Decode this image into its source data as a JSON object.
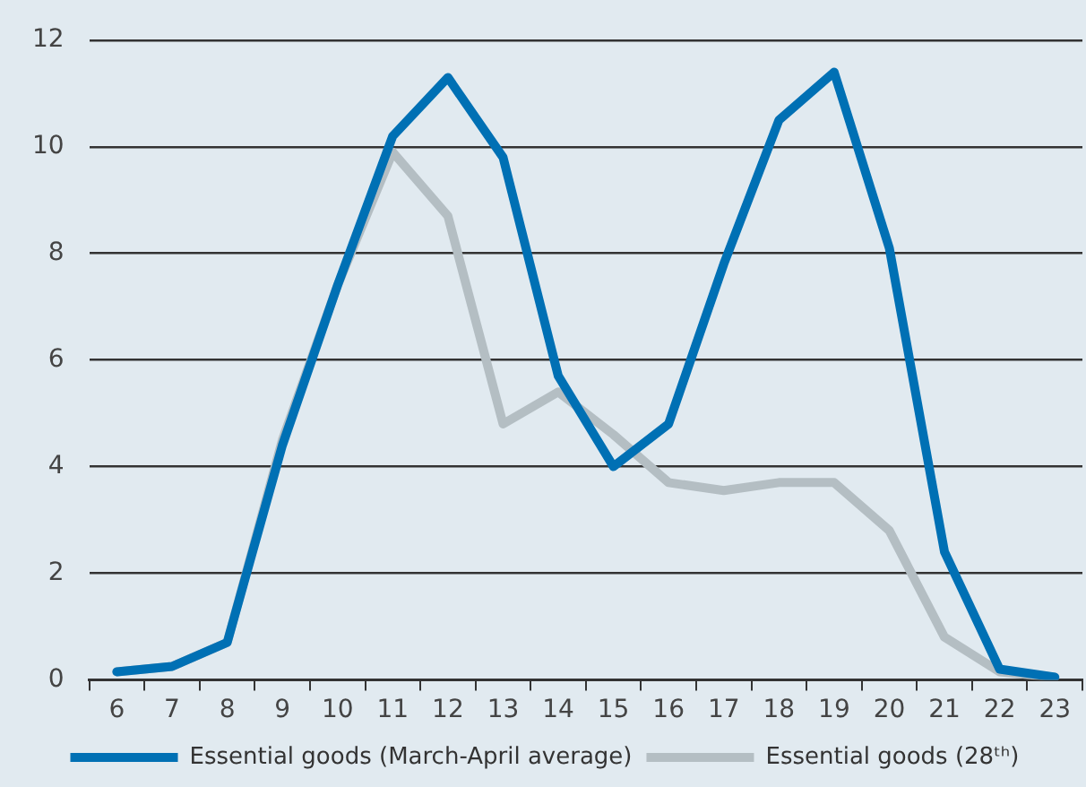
{
  "chart_data": {
    "type": "line",
    "categories": [
      "6",
      "7",
      "8",
      "9",
      "10",
      "11",
      "12",
      "13",
      "14",
      "15",
      "16",
      "17",
      "18",
      "19",
      "20",
      "21",
      "22",
      "23"
    ],
    "series": [
      {
        "name": "Essential goods (28ᵗʰ)",
        "color": "#b4bec3",
        "values": [
          0.15,
          0.25,
          0.7,
          4.5,
          7.4,
          9.9,
          8.7,
          4.8,
          5.4,
          4.6,
          3.7,
          3.55,
          3.7,
          3.7,
          2.8,
          0.8,
          0.15,
          0.05
        ]
      },
      {
        "name": "Essential goods (March-April average)",
        "color": "#0070b4",
        "values": [
          0.15,
          0.25,
          0.7,
          4.4,
          7.4,
          10.2,
          11.3,
          9.8,
          5.7,
          4.0,
          4.8,
          7.8,
          10.5,
          11.4,
          8.1,
          2.4,
          0.2,
          0.05
        ]
      }
    ],
    "ylim": [
      0,
      12
    ],
    "yticks": [
      0,
      2,
      4,
      6,
      8,
      10,
      12
    ],
    "grid": "y",
    "legend": "bottom",
    "marker": "none",
    "line_style": "solid"
  }
}
